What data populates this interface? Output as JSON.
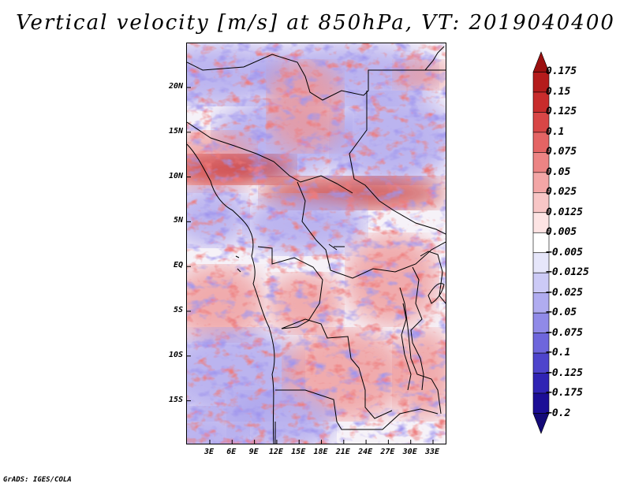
{
  "title": "Vertical velocity [m/s] at 850hPa, VT: 2019040400",
  "credit": "GrADS: IGES/COLA",
  "map": {
    "lat_labels": [
      "20N",
      "15N",
      "10N",
      "5N",
      "EQ",
      "5S",
      "10S",
      "15S"
    ],
    "lon_labels": [
      "3E",
      "6E",
      "9E",
      "12E",
      "15E",
      "18E",
      "21E",
      "24E",
      "27E",
      "30E",
      "33E"
    ]
  },
  "colorbar": {
    "labels": [
      "0.175",
      "0.15",
      "0.125",
      "0.1",
      "0.075",
      "0.05",
      "0.025",
      "0.0125",
      "0.005",
      "−0.005",
      "−0.0125",
      "−0.025",
      "−0.05",
      "−0.075",
      "−0.1",
      "−0.125",
      "−0.175",
      "−0.2"
    ],
    "colors": [
      "#9b1010",
      "#b41c1c",
      "#c82c2c",
      "#d84646",
      "#e46464",
      "#ec8484",
      "#f3a6a6",
      "#f8c6c6",
      "#fde4e4",
      "#ffffff",
      "#e6e6fa",
      "#cccaf6",
      "#b0acf0",
      "#908ae8",
      "#6e66dc",
      "#4e44cc",
      "#3024b4",
      "#1c0e96",
      "#140a78"
    ]
  },
  "field_colors": {
    "strong_up": "#c42a2a",
    "up": "#ee9494",
    "neutral": "#f6f2f8",
    "down": "#a8a0ec",
    "strong_down": "#5a50d4"
  }
}
